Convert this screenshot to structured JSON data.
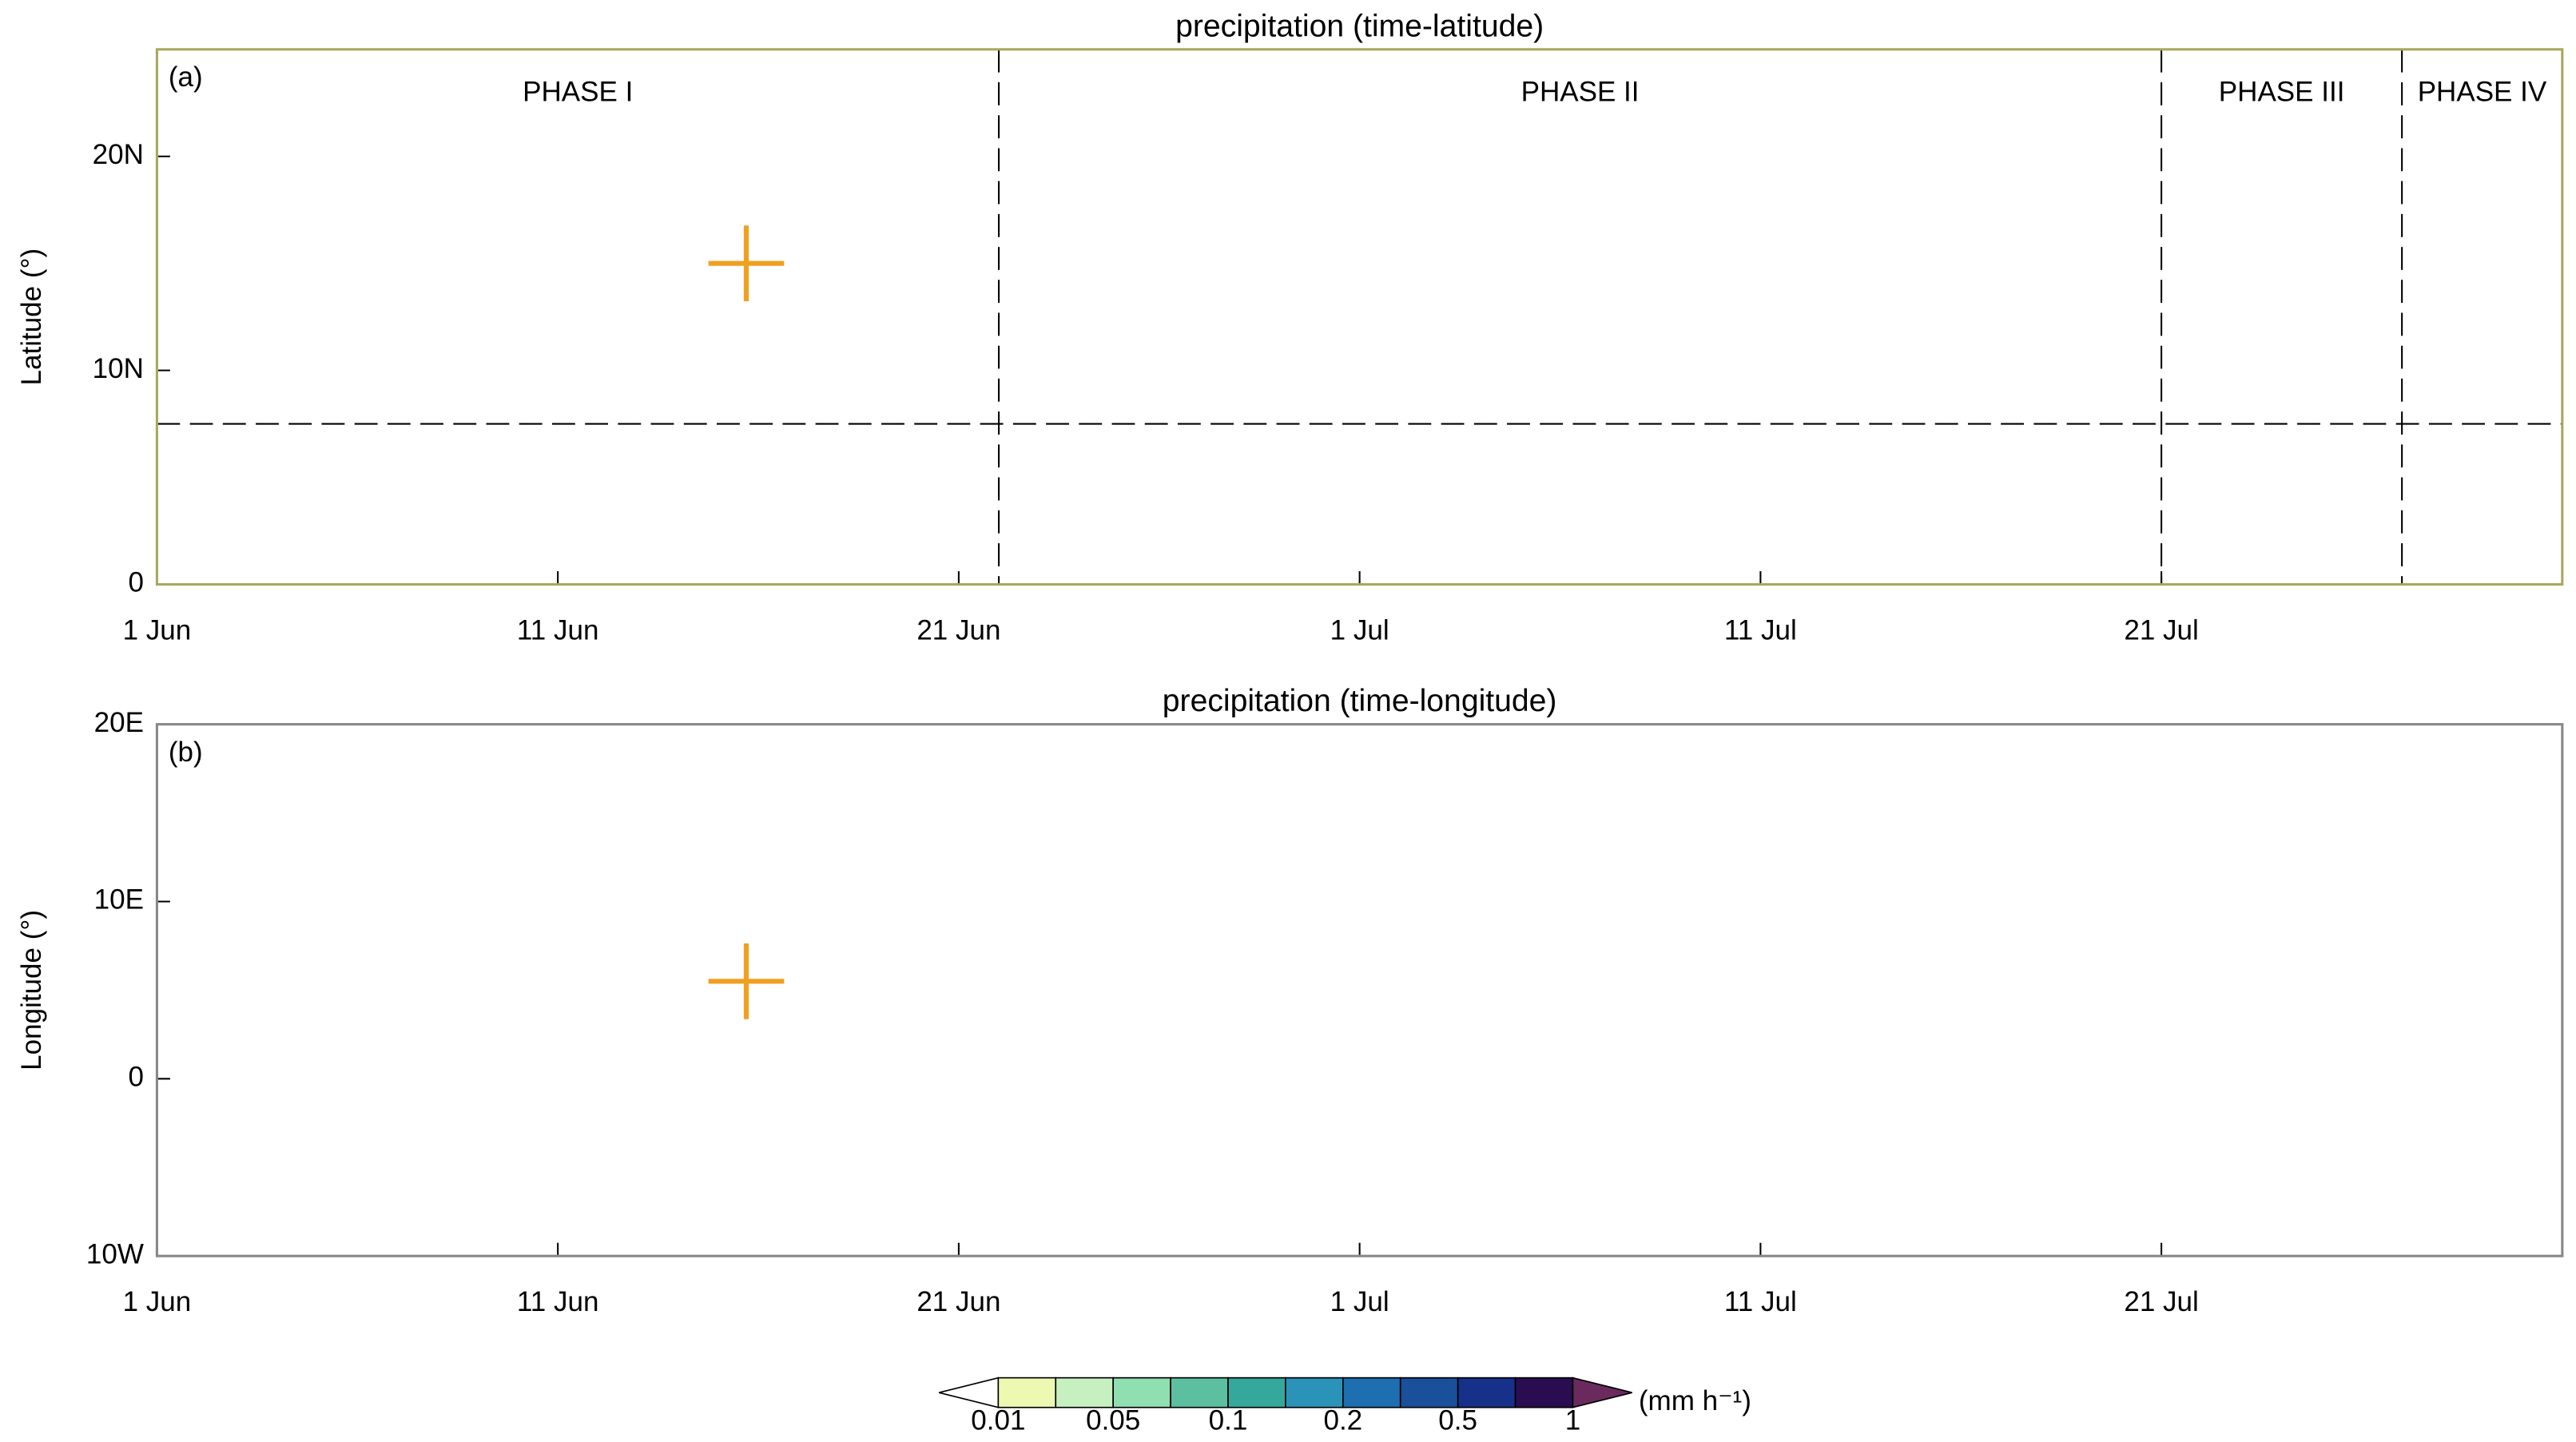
{
  "chart_data": [
    {
      "type": "hovmoller",
      "title": "precipitation (time-latitude)",
      "panel_label": "(a)",
      "ylabel": "Latitude (°)",
      "xlim": [
        0,
        60
      ],
      "xticks": [
        {
          "value": 0,
          "label": "1 Jun"
        },
        {
          "value": 10,
          "label": "11 Jun"
        },
        {
          "value": 20,
          "label": "21 Jun"
        },
        {
          "value": 30,
          "label": "1 Jul"
        },
        {
          "value": 40,
          "label": "11 Jul"
        },
        {
          "value": 50,
          "label": "21 Jul"
        }
      ],
      "ylim": [
        0,
        25
      ],
      "yticks": [
        0,
        {
          "value": 10,
          "label": "10N"
        },
        {
          "value": 20,
          "label": "20N"
        }
      ],
      "phases": [
        "PHASE I",
        "PHASE II",
        "PHASE III",
        "PHASE IV"
      ],
      "phase_boundaries": [
        21,
        50,
        56
      ],
      "reference_line": 7.5,
      "marker": {
        "x": 14.7,
        "y": 15,
        "color": "#f0a020"
      },
      "frame_color": "#a8a860"
    },
    {
      "type": "hovmoller",
      "title": "precipitation (time-longitude)",
      "panel_label": "(b)",
      "ylabel": "Longitude (°)",
      "xlim": [
        0,
        60
      ],
      "xticks": [
        {
          "value": 0,
          "label": "1 Jun"
        },
        {
          "value": 10,
          "label": "11 Jun"
        },
        {
          "value": 20,
          "label": "21 Jun"
        },
        {
          "value": 30,
          "label": "1 Jul"
        },
        {
          "value": 40,
          "label": "11 Jul"
        },
        {
          "value": 50,
          "label": "21 Jul"
        }
      ],
      "ylim": [
        -10,
        20
      ],
      "yticks": [
        {
          "value": -10,
          "label": "10W"
        },
        0,
        {
          "value": 10,
          "label": "10E"
        },
        {
          "value": 20,
          "label": "20E"
        }
      ],
      "marker": {
        "x": 14.7,
        "y": 5.5,
        "color": "#f0a020"
      },
      "frame_color": "#888888"
    }
  ],
  "colorbar": {
    "labels": [
      0.01,
      0.05,
      0.1,
      0.2,
      0.5,
      1
    ],
    "unit": "(mm h⁻¹)",
    "colors": [
      "#ffffff",
      "#edf8b1",
      "#c7f0c0",
      "#8fdfb0",
      "#5cc0a0",
      "#35a89c",
      "#2c93b8",
      "#1d6fb0",
      "#1a4f9a",
      "#17308a",
      "#2a0d50",
      "#6b2a5e"
    ]
  }
}
